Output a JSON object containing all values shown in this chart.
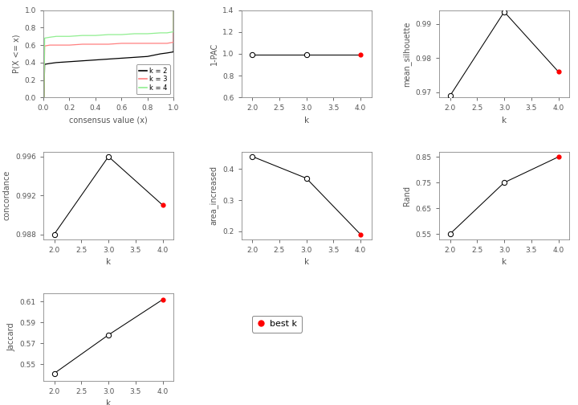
{
  "ecdf": {
    "k2": {
      "x": [
        0.0,
        0.005,
        0.01,
        0.05,
        0.1,
        0.2,
        0.3,
        0.4,
        0.5,
        0.6,
        0.7,
        0.8,
        0.9,
        0.95,
        0.99,
        0.995,
        1.0,
        1.0
      ],
      "y": [
        0.0,
        0.0,
        0.38,
        0.39,
        0.4,
        0.41,
        0.42,
        0.43,
        0.44,
        0.45,
        0.46,
        0.47,
        0.5,
        0.51,
        0.52,
        0.52,
        0.53,
        1.0
      ],
      "color": "#000000"
    },
    "k3": {
      "x": [
        0.0,
        0.005,
        0.01,
        0.05,
        0.1,
        0.2,
        0.3,
        0.4,
        0.5,
        0.6,
        0.7,
        0.8,
        0.9,
        0.95,
        0.99,
        0.995,
        1.0,
        1.0
      ],
      "y": [
        0.0,
        0.0,
        0.59,
        0.6,
        0.6,
        0.6,
        0.61,
        0.61,
        0.61,
        0.62,
        0.62,
        0.62,
        0.62,
        0.62,
        0.63,
        0.63,
        0.63,
        1.0
      ],
      "color": "#FF8080"
    },
    "k4": {
      "x": [
        0.0,
        0.005,
        0.01,
        0.05,
        0.1,
        0.2,
        0.3,
        0.4,
        0.5,
        0.6,
        0.7,
        0.8,
        0.9,
        0.95,
        0.99,
        0.995,
        1.0,
        1.0
      ],
      "y": [
        0.0,
        0.0,
        0.68,
        0.69,
        0.7,
        0.7,
        0.71,
        0.71,
        0.72,
        0.72,
        0.73,
        0.73,
        0.74,
        0.74,
        0.75,
        0.75,
        0.76,
        1.0
      ],
      "color": "#90EE90"
    }
  },
  "pac": {
    "k": [
      2,
      3,
      4
    ],
    "y": [
      0.993,
      0.993,
      0.993
    ],
    "best_k": 4,
    "ylim": [
      0.6,
      1.4
    ],
    "yticks": [
      0.6,
      0.8,
      1.0,
      1.2,
      1.4
    ],
    "ylabel": "1-PAC"
  },
  "mean_silhouette": {
    "k": [
      2,
      3,
      4
    ],
    "y": [
      0.969,
      0.9935,
      0.976
    ],
    "best_k": 4,
    "ylim": [
      0.9685,
      0.994
    ],
    "yticks": [
      0.97,
      0.98,
      0.99
    ],
    "ylabel": "mean_silhouette"
  },
  "concordance": {
    "k": [
      2,
      3,
      4
    ],
    "y": [
      0.988,
      0.996,
      0.991
    ],
    "best_k": 4,
    "ylim": [
      0.9875,
      0.9965
    ],
    "yticks": [
      0.988,
      0.992,
      0.996
    ],
    "ylabel": "concordance"
  },
  "area_increased": {
    "k": [
      2,
      3,
      4
    ],
    "y": [
      0.44,
      0.37,
      0.19
    ],
    "best_k": 4,
    "ylim": [
      0.175,
      0.455
    ],
    "yticks": [
      0.2,
      0.3,
      0.4
    ],
    "ylabel": "area_increased"
  },
  "rand": {
    "k": [
      2,
      3,
      4
    ],
    "y": [
      0.55,
      0.75,
      0.85
    ],
    "best_k": 4,
    "ylim": [
      0.53,
      0.87
    ],
    "yticks": [
      0.55,
      0.65,
      0.75,
      0.85
    ],
    "ylabel": "Rand"
  },
  "jaccard": {
    "k": [
      2,
      3,
      4
    ],
    "y": [
      0.541,
      0.578,
      0.612
    ],
    "best_k": 4,
    "ylim": [
      0.534,
      0.618
    ],
    "yticks": [
      0.55,
      0.57,
      0.59,
      0.61
    ],
    "ylabel": "Jaccard"
  },
  "best_k_color": "#FF0000",
  "open_circle_color": "#FFFFFF",
  "line_color": "#000000",
  "background": "#FFFFFF",
  "axis_color": "#000000",
  "tick_color": "#888888"
}
